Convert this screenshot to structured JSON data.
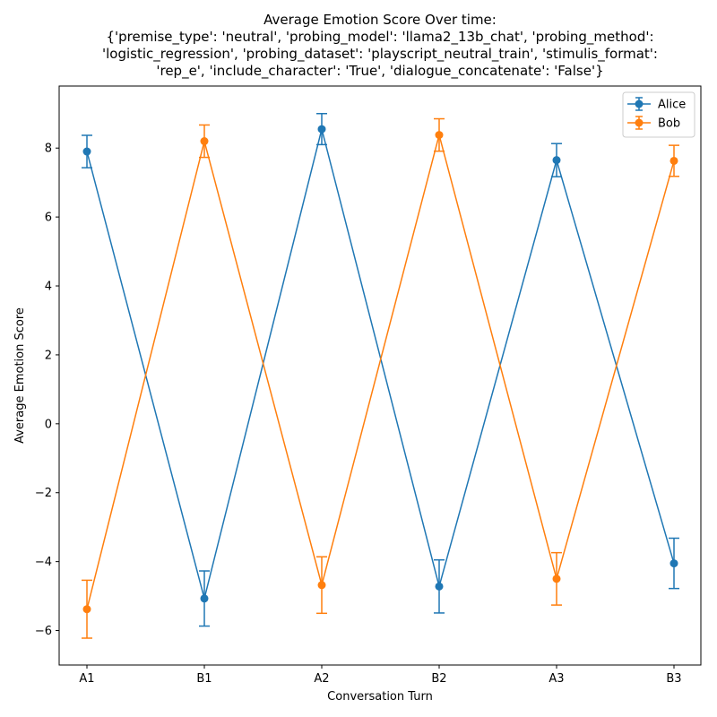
{
  "chart_data": {
    "type": "line",
    "title_lines": [
      "Average Emotion Score Over time:",
      "{'premise_type': 'neutral', 'probing_model': 'llama2_13b_chat', 'probing_method':",
      "'logistic_regression', 'probing_dataset': 'playscript_neutral_train', 'stimulis_format':",
      "'rep_e', 'include_character': 'True', 'dialogue_concatenate': 'False'}"
    ],
    "xlabel": "Conversation Turn",
    "ylabel": "Average Emotion Score",
    "categories": [
      "A1",
      "B1",
      "A2",
      "B2",
      "A3",
      "B3"
    ],
    "ylim": [
      -7.0,
      9.8
    ],
    "yticks": [
      -6,
      -4,
      -2,
      0,
      2,
      4,
      6,
      8
    ],
    "ytick_labels": [
      "−6",
      "−4",
      "−2",
      "0",
      "2",
      "4",
      "6",
      "8"
    ],
    "grid": false,
    "legend_position": "top-right",
    "series": [
      {
        "name": "Alice",
        "color": "#1f77b4",
        "values": [
          7.9,
          -5.07,
          8.55,
          -4.72,
          7.65,
          -4.05
        ],
        "errors": [
          0.47,
          0.8,
          0.45,
          0.77,
          0.48,
          0.73
        ]
      },
      {
        "name": "Bob",
        "color": "#ff7f0e",
        "values": [
          -5.38,
          8.2,
          -4.68,
          8.38,
          -4.5,
          7.63
        ],
        "errors": [
          0.84,
          0.47,
          0.82,
          0.47,
          0.76,
          0.45
        ]
      }
    ]
  }
}
